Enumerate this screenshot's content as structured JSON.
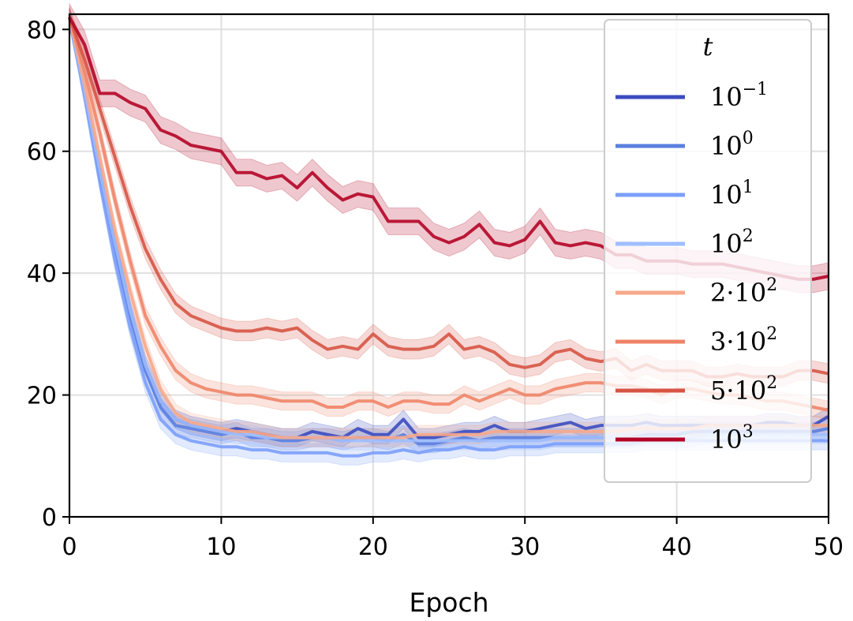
{
  "chart_data": {
    "type": "line",
    "xlabel": "Epoch",
    "ylabel": "",
    "xlim": [
      0,
      50
    ],
    "ylim": [
      0,
      82.5
    ],
    "xticks": [
      0,
      10,
      20,
      30,
      40,
      50
    ],
    "yticks": [
      0,
      20,
      40,
      60,
      80
    ],
    "grid": true,
    "legend": {
      "title": "t",
      "placement": "top-right"
    },
    "series": [
      {
        "name": "10^-1",
        "color": "#3b4cc0",
        "values": [
          82,
          70,
          57,
          45,
          34,
          25,
          19,
          16,
          15,
          14.5,
          14,
          14.5,
          14,
          13.5,
          13,
          13,
          14,
          13.5,
          13,
          14.5,
          13.5,
          13.5,
          16,
          13,
          13,
          13.5,
          14,
          14,
          15,
          14,
          14,
          14.5,
          15,
          15.5,
          14.5,
          15,
          15,
          15,
          15.5,
          15,
          15,
          15,
          15,
          15,
          15,
          15,
          15.5,
          15.5,
          15,
          15,
          16.5
        ],
        "spread": 1.5
      },
      {
        "name": "10^0",
        "color": "#5b7fe0",
        "values": [
          82,
          70,
          56,
          44,
          33,
          24,
          18,
          15,
          14.5,
          14,
          13.5,
          14,
          13,
          13,
          12.5,
          12.5,
          13,
          13,
          12.5,
          13,
          13,
          12.5,
          13.5,
          12,
          12,
          12.5,
          13,
          12.5,
          13,
          13,
          13,
          13,
          13,
          13,
          13,
          13,
          13,
          13,
          13.5,
          13.5,
          13.5,
          14,
          14,
          14,
          14,
          14,
          14,
          14,
          14,
          14,
          14.5
        ],
        "spread": 1.5
      },
      {
        "name": "10^1",
        "color": "#7b9ff9",
        "values": [
          82,
          69,
          55,
          42,
          31,
          22,
          16,
          13.5,
          12.5,
          12,
          11.5,
          11.5,
          11,
          11,
          10.5,
          10.5,
          10.5,
          10.5,
          10,
          10,
          10.5,
          10.5,
          11,
          10.5,
          11,
          11,
          11.5,
          11,
          11,
          11.5,
          11.5,
          11.5,
          12,
          12,
          12,
          12,
          12,
          12,
          12.5,
          12.5,
          12.5,
          12.5,
          12.5,
          12.5,
          12.5,
          12.5,
          12.5,
          12.5,
          12.5,
          12.5,
          12.5
        ],
        "spread": 1.5
      },
      {
        "name": "10^2",
        "color": "#9ebeff",
        "values": [
          82,
          70,
          57,
          45,
          34,
          25,
          19,
          16,
          15,
          14.5,
          14,
          13.5,
          13.5,
          13,
          13,
          13,
          13,
          13,
          12.5,
          12.5,
          12.5,
          12.5,
          12.5,
          12.5,
          12.5,
          12.5,
          12.5,
          12.5,
          12.5,
          12.5,
          12.5,
          12.5,
          13,
          13,
          13,
          13,
          13,
          13,
          13,
          13,
          13,
          13,
          13.5,
          13.5,
          13.5,
          13.5,
          13.5,
          13.5,
          13.5,
          13.5,
          13.5
        ],
        "spread": 1.5
      },
      {
        "name": "2·10^2",
        "color": "#f7a889",
        "values": [
          82,
          71,
          59,
          47,
          37,
          28,
          21,
          17,
          15.5,
          15,
          14.5,
          14,
          14,
          13.5,
          13,
          13,
          13,
          13,
          13,
          13,
          13,
          13,
          13,
          13.5,
          13.5,
          13.5,
          13.5,
          13.5,
          14,
          14,
          14,
          14,
          14,
          14,
          14,
          14,
          14,
          14.5,
          14.5,
          14.5,
          14.5,
          14.5,
          15,
          15,
          15,
          15,
          15,
          15,
          15,
          15,
          15
        ],
        "spread": 1.5
      },
      {
        "name": "3·10^2",
        "color": "#ee8468",
        "values": [
          82,
          73,
          63,
          52,
          42,
          33,
          28,
          24,
          22,
          21,
          20.5,
          20,
          20,
          19.5,
          19,
          19,
          19,
          18,
          18,
          19,
          19,
          18,
          19,
          19,
          18.5,
          18.5,
          20,
          19,
          20,
          21,
          20,
          20,
          21,
          21.5,
          22,
          22,
          21.5,
          21.5,
          21,
          20,
          21,
          21,
          20.5,
          20,
          20,
          19.5,
          19,
          19,
          18.5,
          18,
          17.5
        ],
        "spread": 1.5
      },
      {
        "name": "5·10^2",
        "color": "#d75445",
        "values": [
          82,
          75,
          67,
          59,
          51,
          44,
          39,
          35,
          33,
          32,
          31,
          30.5,
          30.5,
          31,
          30.5,
          31,
          29,
          27.5,
          28,
          27.5,
          30,
          28,
          27.5,
          27.5,
          28,
          30,
          27.5,
          28,
          27,
          25,
          24.5,
          25,
          27,
          27.5,
          26,
          25.5,
          26,
          24,
          25,
          24,
          24,
          24,
          23,
          23,
          23.5,
          23,
          23,
          23,
          24,
          24,
          23.5
        ],
        "spread": 1.6
      },
      {
        "name": "10^3",
        "color": "#b40426",
        "values": [
          82,
          77.5,
          69.5,
          69.5,
          68,
          67,
          63.5,
          62.5,
          61,
          60.5,
          60,
          56.5,
          56.5,
          55.5,
          56,
          54,
          56.5,
          54,
          52,
          53,
          52.5,
          48.5,
          48.5,
          48.5,
          46,
          45,
          46,
          48,
          45,
          44.5,
          45.5,
          48.5,
          45,
          44.5,
          45,
          44.5,
          43,
          43,
          42,
          42,
          42,
          41.5,
          41.5,
          41.5,
          41,
          40.5,
          40,
          39.5,
          39,
          39,
          39.5
        ],
        "spread": 2.2
      }
    ]
  }
}
